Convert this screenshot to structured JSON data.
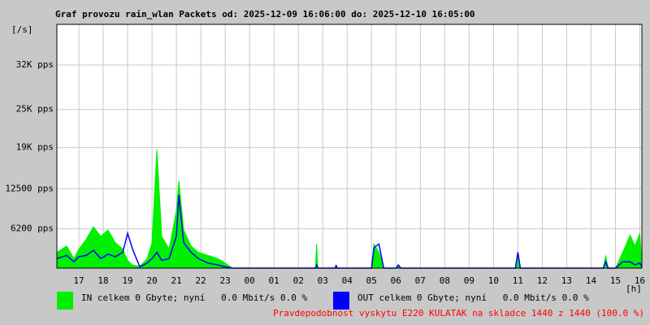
{
  "chart_data": {
    "type": "line",
    "title": "Graf provozu rain_wlan Packets od: 2025-12-09 16:06:00 do: 2025-12-10 16:05:00",
    "y_label": "[/s]",
    "x_label": "[h]",
    "ylim": [
      0,
      38400
    ],
    "yticks": [
      {
        "value": 6200,
        "label": "6200 pps"
      },
      {
        "value": 12500,
        "label": "12500 pps"
      },
      {
        "value": 19000,
        "label": "19K pps"
      },
      {
        "value": 25000,
        "label": "25K pps"
      },
      {
        "value": 32000,
        "label": "32K pps"
      }
    ],
    "xlim": [
      16.1,
      40.0833
    ],
    "xticks": [
      17,
      18,
      19,
      20,
      21,
      22,
      23,
      {
        "value": 24,
        "label": "00"
      },
      {
        "value": 25,
        "label": "01"
      },
      {
        "value": 26,
        "label": "02"
      },
      {
        "value": 27,
        "label": "03"
      },
      {
        "value": 28,
        "label": "04"
      },
      {
        "value": 29,
        "label": "05"
      },
      {
        "value": 30,
        "label": "06"
      },
      {
        "value": 31,
        "label": "07"
      },
      {
        "value": 32,
        "label": "08"
      },
      {
        "value": 33,
        "label": "09"
      },
      {
        "value": 34,
        "label": "10"
      },
      {
        "value": 35,
        "label": "11"
      },
      {
        "value": 36,
        "label": "12"
      },
      {
        "value": 37,
        "label": "13"
      },
      {
        "value": 38,
        "label": "14"
      },
      {
        "value": 39,
        "label": "15"
      },
      {
        "value": 40,
        "label": "16"
      }
    ],
    "grid": true,
    "x": [
      16.1,
      16.5,
      16.8,
      17.0,
      17.3,
      17.6,
      17.9,
      18.2,
      18.5,
      18.8,
      19.0,
      19.2,
      19.5,
      19.8,
      20.0,
      20.2,
      20.4,
      20.7,
      21.0,
      21.1,
      21.3,
      21.6,
      21.9,
      22.3,
      22.7,
      23.0,
      23.3,
      26.7,
      26.75,
      26.8,
      27.5,
      27.55,
      27.6,
      29.0,
      29.1,
      29.3,
      29.5,
      30.0,
      30.1,
      30.2,
      34.9,
      35.0,
      35.1,
      38.5,
      38.6,
      38.7,
      39.0,
      39.3,
      39.6,
      39.8,
      40.0,
      40.08
    ],
    "series": [
      {
        "name": "IN celkem 0 Gbyte; nyní   0.0 Mbit/s 0.0 %",
        "color": "#00f000",
        "fill": true,
        "values": [
          2500,
          3500,
          1500,
          3000,
          4500,
          6500,
          5000,
          6000,
          4000,
          3000,
          1200,
          500,
          300,
          1500,
          4000,
          18700,
          5000,
          3000,
          9000,
          13800,
          6000,
          3500,
          2500,
          2000,
          1500,
          800,
          0,
          0,
          3800,
          0,
          0,
          400,
          0,
          0,
          3800,
          2500,
          0,
          0,
          500,
          0,
          0,
          2500,
          0,
          0,
          2000,
          0,
          0,
          2500,
          5200,
          3500,
          5500,
          500
        ]
      },
      {
        "name": "OUT celkem 0 Gbyte; nyní   0.0 Mbit/s 0.0 %",
        "color": "#0000ff",
        "fill": false,
        "values": [
          1500,
          2000,
          1000,
          1800,
          2000,
          2800,
          1500,
          2200,
          1800,
          2500,
          5500,
          3000,
          200,
          800,
          1500,
          2500,
          1200,
          1500,
          5000,
          11500,
          4000,
          2500,
          1500,
          800,
          500,
          200,
          0,
          0,
          500,
          0,
          0,
          400,
          0,
          0,
          3200,
          3800,
          0,
          0,
          500,
          0,
          0,
          2500,
          0,
          0,
          1000,
          0,
          0,
          1000,
          1000,
          500,
          800,
          200
        ]
      }
    ],
    "note": "Pravdepodobnost vyskytu E220 KULATAK na skladce 1440 z 1440 (100.0 %)"
  }
}
